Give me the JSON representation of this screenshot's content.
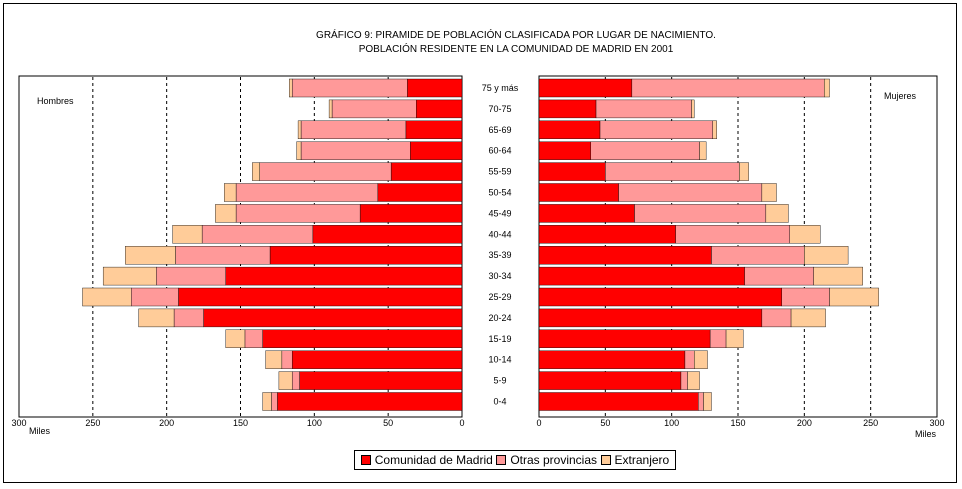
{
  "chart_data": {
    "type": "bar",
    "orientation": "horizontal-pyramid",
    "title": "GRÁFICO 9: PIRAMIDE DE POBLACIÓN CLASIFICADA POR LUGAR DE NACIMIENTO.",
    "subtitle": "POBLACIÓN RESIDENTE EN LA COMUNIDAD DE MADRID EN 2001",
    "left_label": "Hombres",
    "right_label": "Mujeres",
    "x_unit_left": "Miles",
    "x_unit_right": "Miles",
    "xlim": [
      0,
      300
    ],
    "left_ticks": [
      "300",
      "250",
      "200",
      "150",
      "100",
      "50",
      "0"
    ],
    "right_ticks": [
      "0",
      "50",
      "100",
      "150",
      "200",
      "250",
      "300"
    ],
    "grid": "dashed vertical lines at 50, 100, 150, 200 and 250 on each side",
    "legend_position": "bottom-center",
    "categories": [
      "75 y más",
      "70-75",
      "65-69",
      "60-64",
      "55-59",
      "50-54",
      "45-49",
      "40-44",
      "35-39",
      "30-34",
      "25-29",
      "20-24",
      "15-19",
      "10-14",
      "5-9",
      "0-4"
    ],
    "series_names": [
      "Comunidad de Madrid",
      "Otras provincias",
      "Extranjero"
    ],
    "colors": [
      "#ff0000",
      "#ff9999",
      "#ffcc99"
    ],
    "hombres": {
      "Comunidad de Madrid": [
        37,
        31,
        38,
        35,
        48,
        57,
        69,
        101,
        130,
        160,
        192,
        175,
        135,
        115,
        110,
        125
      ],
      "Otras provincias": [
        78,
        57,
        71,
        74,
        89,
        96,
        84,
        75,
        64,
        47,
        32,
        20,
        12,
        7,
        5,
        4
      ],
      "Extranjero": [
        2,
        2,
        2,
        3,
        5,
        8,
        14,
        20,
        34,
        36,
        33,
        24,
        13,
        11,
        9,
        6
      ]
    },
    "mujeres": {
      "Comunidad de Madrid": [
        70,
        43,
        46,
        39,
        50,
        60,
        72,
        103,
        130,
        155,
        183,
        168,
        129,
        110,
        107,
        120
      ],
      "Otras provincias": [
        145,
        72,
        85,
        82,
        101,
        108,
        99,
        86,
        70,
        52,
        36,
        22,
        12,
        7,
        5,
        4
      ],
      "Extranjero": [
        4,
        2,
        3,
        5,
        7,
        11,
        17,
        23,
        33,
        37,
        37,
        26,
        13,
        10,
        9,
        6
      ]
    }
  }
}
